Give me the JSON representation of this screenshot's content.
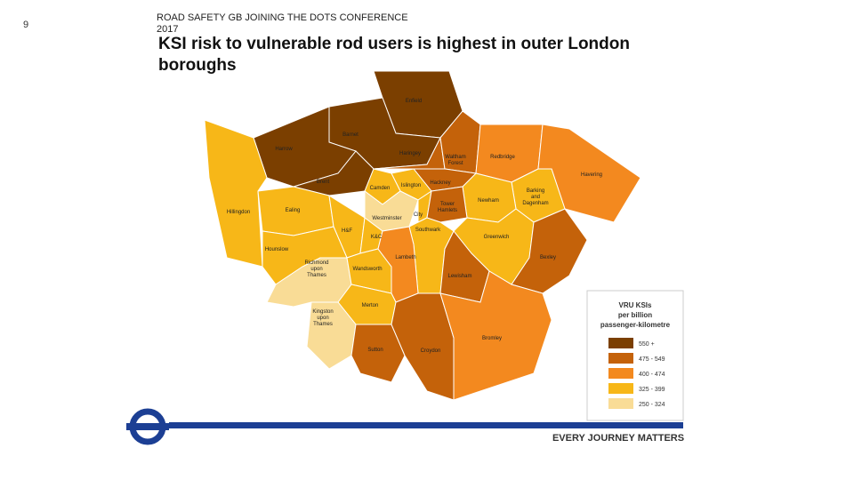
{
  "slide_number": "9",
  "header": "ROAD SAFETY GB JOINING THE DOTS CONFERENCE 2017",
  "title": "KSI risk to vulnerable rod users is highest in outer London boroughs",
  "map": {
    "boroughs": [
      {
        "label": [
          "Enfield"
        ],
        "color": "#7b3f00"
      },
      {
        "label": [
          "Barnet"
        ],
        "color": "#7b3f00"
      },
      {
        "label": [
          "Harrow"
        ],
        "color": "#7b3f00"
      },
      {
        "label": [
          "Brent"
        ],
        "color": "#7b3f00"
      },
      {
        "label": [
          "Haringey"
        ],
        "color": "#c4620a"
      },
      {
        "label": [
          "Waltham",
          "Forest"
        ],
        "color": "#c4620a"
      },
      {
        "label": [
          "Redbridge"
        ],
        "color": "#f3891f"
      },
      {
        "label": [
          "Havering"
        ],
        "color": "#f3891f"
      },
      {
        "label": [
          "Barking",
          "and",
          "Dagenham"
        ],
        "color": "#f7b718"
      },
      {
        "label": [
          "Newham"
        ],
        "color": "#f7b718"
      },
      {
        "label": [
          "Hackney"
        ],
        "color": "#c4620a"
      },
      {
        "label": [
          "Islington"
        ],
        "color": "#f7b718"
      },
      {
        "label": [
          "Camden"
        ],
        "color": "#f7b718"
      },
      {
        "label": [
          "Hillingdon"
        ],
        "color": "#f7b718"
      },
      {
        "label": [
          "Ealing"
        ],
        "color": "#f7b718"
      },
      {
        "label": [
          "Westminster"
        ],
        "color": "#f9dc96"
      },
      {
        "label": [
          "City"
        ],
        "color": "#f7b718"
      },
      {
        "label": [
          "Tower",
          "Hamlets"
        ],
        "color": "#c4620a"
      },
      {
        "label": [
          "H&F"
        ],
        "color": "#f7b718"
      },
      {
        "label": [
          "K&C"
        ],
        "color": "#f7b718"
      },
      {
        "label": [
          "Southwark"
        ],
        "color": "#f7b718"
      },
      {
        "label": [
          "Greenwich"
        ],
        "color": "#f7b718"
      },
      {
        "label": [
          "Bexley"
        ],
        "color": "#c4620a"
      },
      {
        "label": [
          "Hounslow"
        ],
        "color": "#f7b718"
      },
      {
        "label": [
          "Richmond",
          "upon",
          "Thames"
        ],
        "color": "#f9dc96"
      },
      {
        "label": [
          "Wandsworth"
        ],
        "color": "#f7b718"
      },
      {
        "label": [
          "Lambeth"
        ],
        "color": "#f3891f"
      },
      {
        "label": [
          "Lewisham"
        ],
        "color": "#c4620a"
      },
      {
        "label": [
          "Merton"
        ],
        "color": "#f7b718"
      },
      {
        "label": [
          "Kingston",
          "upon",
          "Thames"
        ],
        "color": "#f9dc96"
      },
      {
        "label": [
          "Sutton"
        ],
        "color": "#c4620a"
      },
      {
        "label": [
          "Croydon"
        ],
        "color": "#c4620a"
      },
      {
        "label": [
          "Bromley"
        ],
        "color": "#f3891f"
      }
    ]
  },
  "legend": {
    "title": [
      "VRU KSIs",
      "per billion",
      "passenger-kilometre"
    ],
    "entries": [
      {
        "label": "550 +",
        "color": "#7b3f00"
      },
      {
        "label": "475 - 549",
        "color": "#c4620a"
      },
      {
        "label": "400 - 474",
        "color": "#f3891f"
      },
      {
        "label": "325 - 399",
        "color": "#f7b718"
      },
      {
        "label": "250 - 324",
        "color": "#f9dc96"
      }
    ]
  },
  "footer": "EVERY JOURNEY MATTERS"
}
